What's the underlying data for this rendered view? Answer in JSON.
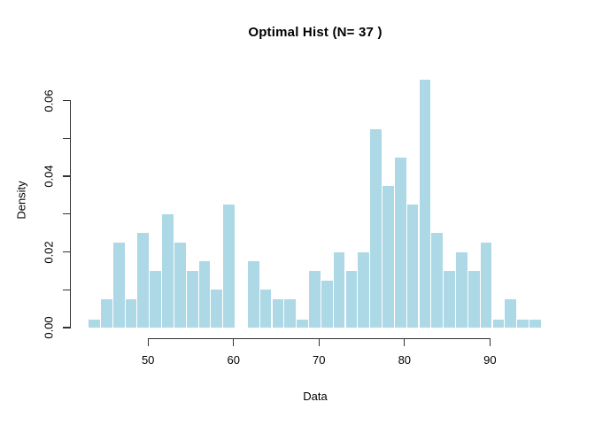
{
  "figure": {
    "title": "Optimal Hist (N= 37 )",
    "xlabel": "Data",
    "ylabel": "Density"
  },
  "chart_data": {
    "type": "bar",
    "subtype": "histogram",
    "title": "Optimal Hist (N= 37 )",
    "xlabel": "Data",
    "ylabel": "Density",
    "bin_start": 43,
    "bin_width": 1.4324,
    "bin_count": 37,
    "densities": [
      0.002,
      0.0075,
      0.0225,
      0.0075,
      0.025,
      0.015,
      0.03,
      0.0225,
      0.015,
      0.0175,
      0.01,
      0.0325,
      0,
      0.0175,
      0.01,
      0.0075,
      0.0075,
      0.002,
      0.015,
      0.0125,
      0.02,
      0.015,
      0.02,
      0.0525,
      0.0375,
      0.045,
      0.0325,
      0.0655,
      0.025,
      0.015,
      0.02,
      0.015,
      0.0225,
      0.002,
      0.0075,
      0.002,
      0.002
    ],
    "x_ticks": [
      {
        "value": 50,
        "label": "50"
      },
      {
        "value": 60,
        "label": "60"
      },
      {
        "value": 70,
        "label": "70"
      },
      {
        "value": 80,
        "label": "80"
      },
      {
        "value": 90,
        "label": "90"
      }
    ],
    "y_ticks": [
      {
        "value": 0.0,
        "label": "0.00"
      },
      {
        "value": 0.01,
        "label": ""
      },
      {
        "value": 0.02,
        "label": "0.02"
      },
      {
        "value": 0.03,
        "label": ""
      },
      {
        "value": 0.04,
        "label": "0.04"
      },
      {
        "value": 0.05,
        "label": ""
      },
      {
        "value": 0.06,
        "label": "0.06"
      }
    ],
    "xlim": [
      42.85,
      96.15
    ],
    "ylim": [
      0,
      0.06
    ],
    "grid": false,
    "legend": null,
    "bar_color": "#ADD8E6",
    "bar_gap_color": "#FFFFFF",
    "axis_color": "#333333"
  }
}
